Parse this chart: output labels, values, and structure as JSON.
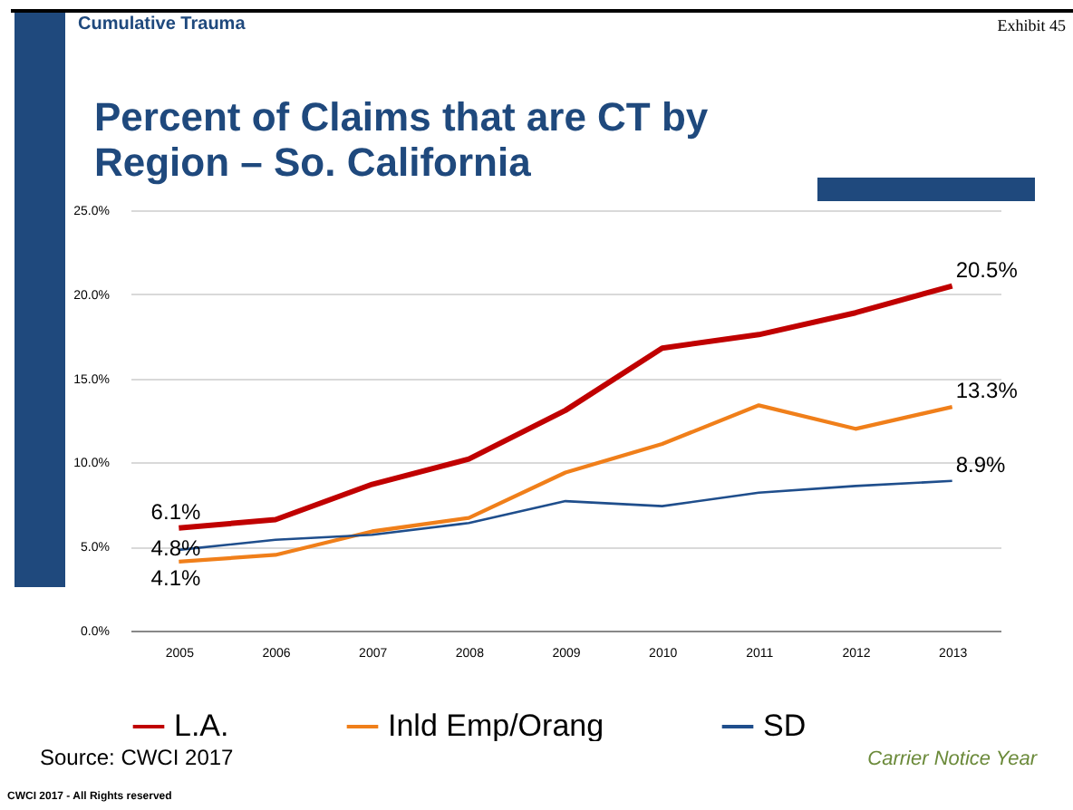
{
  "chart_data": {
    "type": "line",
    "title": "Percent of Claims that are CT by Region – So. California",
    "xlabel": "Carrier Notice Year",
    "annotations": [
      "Cumulative Trauma",
      "Exhibit 45",
      "Source: CWCI 2017",
      "CWCI 2017 - All Rights reserved"
    ],
    "categories": [
      "2005",
      "2006",
      "2007",
      "2008",
      "2009",
      "2010",
      "2011",
      "2012",
      "2013"
    ],
    "series": [
      {
        "name": "L.A.",
        "color": "#c00000",
        "values": [
          6.1,
          6.6,
          8.7,
          10.2,
          13.1,
          16.8,
          17.6,
          18.9,
          20.5
        ],
        "value_labels": [
          "6.1%",
          null,
          null,
          null,
          null,
          null,
          null,
          null,
          "20.5%"
        ]
      },
      {
        "name": "Inld Emp/Orang",
        "color": "#f07f1a",
        "values": [
          4.1,
          4.5,
          5.9,
          6.7,
          9.4,
          11.1,
          13.4,
          12.0,
          13.3
        ],
        "value_labels": [
          "4.1%",
          null,
          null,
          null,
          null,
          null,
          null,
          null,
          "13.3%"
        ]
      },
      {
        "name": "SD",
        "color": "#1f4e8c",
        "values": [
          4.8,
          5.4,
          5.7,
          6.4,
          7.7,
          7.4,
          8.2,
          8.6,
          8.9
        ],
        "value_labels": [
          "4.8%",
          null,
          null,
          null,
          null,
          null,
          null,
          null,
          "8.9%"
        ]
      }
    ],
    "ylim": [
      0,
      25
    ],
    "yticks": [
      {
        "value": 0,
        "label": "0.0%"
      },
      {
        "value": 5,
        "label": "5.0%"
      },
      {
        "value": 10,
        "label": "10.0%"
      },
      {
        "value": 15,
        "label": "15.0%"
      },
      {
        "value": 20,
        "label": "20.0%"
      },
      {
        "value": 25,
        "label": "25.0%"
      }
    ],
    "grid": "y",
    "legend": "bottom",
    "marker": "none",
    "line_style": "solid"
  }
}
